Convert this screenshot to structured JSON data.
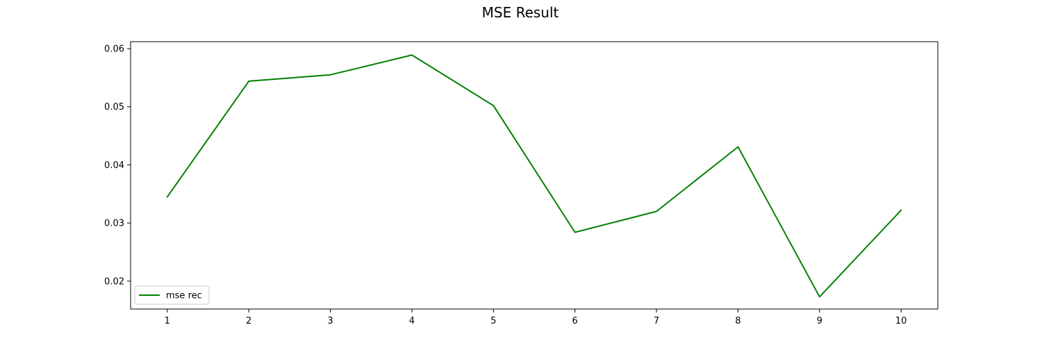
{
  "chart_data": {
    "type": "line",
    "title": "MSE Result",
    "xlabel": "",
    "ylabel": "",
    "x": [
      1,
      2,
      3,
      4,
      5,
      6,
      7,
      8,
      9,
      10
    ],
    "x_ticks": [
      1,
      2,
      3,
      4,
      5,
      6,
      7,
      8,
      9,
      10
    ],
    "xlim": [
      0.55,
      10.45
    ],
    "y_ticks": [
      "0.02",
      "0.03",
      "0.04",
      "0.05",
      "0.06"
    ],
    "ylim": [
      0.0152,
      0.0612
    ],
    "grid": false,
    "legend_position": "lower-left",
    "series": [
      {
        "name": "mse rec",
        "color": "#008000",
        "values": [
          0.0345,
          0.0544,
          0.0555,
          0.0589,
          0.0502,
          0.0284,
          0.032,
          0.0431,
          0.0173,
          0.0322
        ]
      }
    ]
  }
}
